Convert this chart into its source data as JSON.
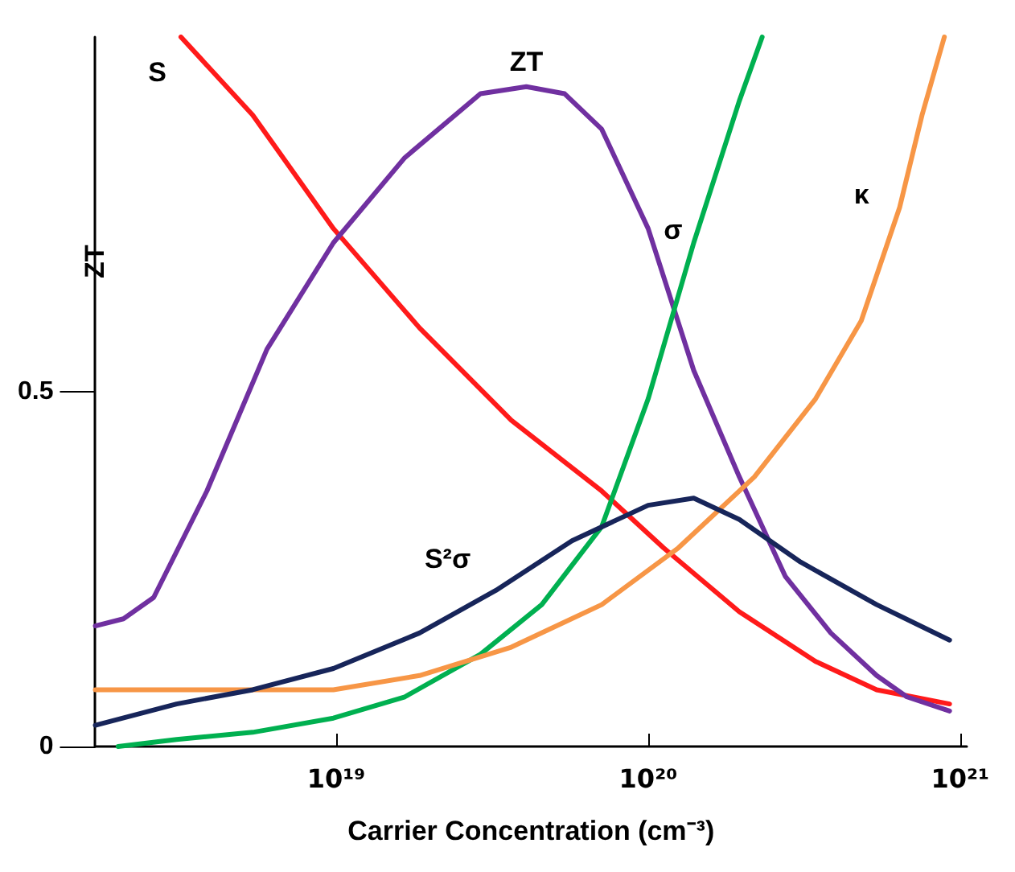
{
  "chart_data": {
    "type": "line",
    "xlabel": "Carrier Concentration (cm⁻³)",
    "ylabel": "ZT",
    "log": "x",
    "xlim": [
      1.69e+18,
      1.05e+21
    ],
    "xticks": [
      {
        "value": 1e+19,
        "label": "10¹⁹"
      },
      {
        "value": 1e+20,
        "label": "10²⁰"
      },
      {
        "value": 1e+21,
        "label": "10²¹"
      }
    ],
    "ylim": [
      0,
      1
    ],
    "yticks": [
      0,
      0.5
    ],
    "grid": false,
    "marker": "none",
    "line_style": "solid",
    "series": [
      {
        "name": "S",
        "color": "#ff1a1a",
        "x": [
          3.18e+18,
          5.4e+18,
          9.8e+18,
          1.85e+19,
          3.64e+19,
          7.1e+19,
          1.12e+20,
          1.96e+20,
          3.44e+20,
          5.4e+20,
          9.25e+20
        ],
        "values": [
          1.0,
          0.89,
          0.73,
          0.59,
          0.46,
          0.36,
          0.28,
          0.19,
          0.12,
          0.08,
          0.06
        ]
      },
      {
        "name": "ZT",
        "color": "#7030a0",
        "x": [
          1.69e+18,
          2.08e+18,
          2.6e+18,
          3.85e+18,
          6e+18,
          9.8e+18,
          1.66e+19,
          2.9e+19,
          4.07e+19,
          5.4e+19,
          7.1e+19,
          1e+20,
          1.4e+20,
          1.96e+20,
          2.75e+20,
          3.85e+20,
          5.4e+20,
          6.75e+20,
          9.25e+20
        ],
        "values": [
          0.17,
          0.18,
          0.21,
          0.36,
          0.56,
          0.71,
          0.83,
          0.92,
          0.93,
          0.92,
          0.87,
          0.73,
          0.53,
          0.38,
          0.24,
          0.16,
          0.1,
          0.07,
          0.05
        ]
      },
      {
        "name": "σ",
        "color": "#00b050",
        "x": [
          2e+18,
          3.08e+18,
          5.4e+18,
          9.8e+18,
          1.66e+19,
          2.9e+19,
          4.56e+19,
          7.1e+19,
          1e+20,
          1.4e+20,
          1.96e+20,
          2.32e+20
        ],
        "values": [
          0.0,
          0.01,
          0.02,
          0.04,
          0.07,
          0.13,
          0.2,
          0.31,
          0.49,
          0.71,
          0.91,
          1.0
        ]
      },
      {
        "name": "κ",
        "color": "#f79646",
        "x": [
          1.69e+18,
          3.08e+18,
          9.8e+18,
          1.85e+19,
          3.64e+19,
          7.1e+19,
          1.25e+20,
          2.19e+20,
          3.44e+20,
          4.82e+20,
          6.4e+20,
          7.55e+20,
          8.9e+20
        ],
        "values": [
          0.08,
          0.08,
          0.08,
          0.1,
          0.14,
          0.2,
          0.28,
          0.38,
          0.49,
          0.6,
          0.76,
          0.89,
          1.0
        ]
      },
      {
        "name": "S²σ",
        "color": "#17255a",
        "x": [
          1.69e+18,
          3.08e+18,
          5.4e+18,
          9.8e+18,
          1.85e+19,
          3.25e+19,
          5.7e+19,
          1e+20,
          1.4e+20,
          1.96e+20,
          3.08e+20,
          5.4e+20,
          9.25e+20
        ],
        "values": [
          0.03,
          0.06,
          0.08,
          0.11,
          0.16,
          0.22,
          0.29,
          0.34,
          0.35,
          0.32,
          0.26,
          0.2,
          0.15
        ]
      }
    ]
  }
}
